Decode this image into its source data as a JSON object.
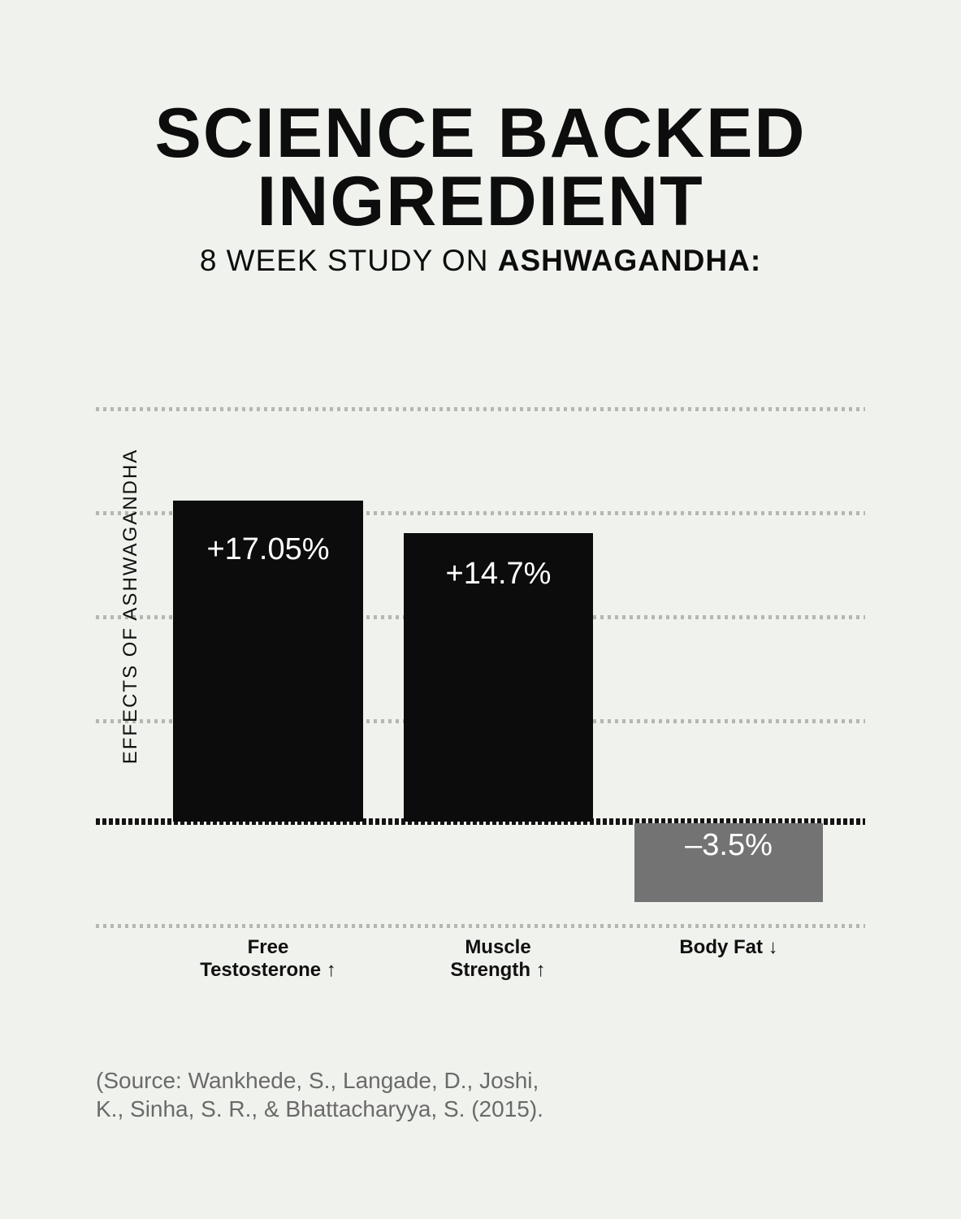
{
  "title": {
    "line1": "SCIENCE BACKED",
    "line2": "INGREDIENT"
  },
  "subtitle": {
    "prefix": "8 WEEK STUDY ON ",
    "emphasis": "ASHWAGANDHA:"
  },
  "chart_data": {
    "type": "bar",
    "title": "8 WEEK STUDY ON ASHWAGANDHA",
    "xlabel": "",
    "ylabel": "EFFECTS OF ASHWAGANDHA",
    "categories": [
      "Free Testosterone ↑",
      "Muscle Strength ↑",
      "Body Fat ↓"
    ],
    "values": [
      17.05,
      14.7,
      -3.5
    ],
    "grid": "horizontal dotted gridlines, no tick labels, bold dotted zero baseline",
    "legend": "none",
    "bars": [
      {
        "category_line1": "Free",
        "category_line2": "Testosterone",
        "arrow": "↑",
        "value": 17.05,
        "value_label": "+17.05%",
        "color": "#0c0c0c"
      },
      {
        "category_line1": "Muscle",
        "category_line2": "Strength",
        "arrow": "↑",
        "value": 14.7,
        "value_label": "+14.7%",
        "color": "#0c0c0c"
      },
      {
        "category_line1": "Body Fat",
        "category_line2": "",
        "arrow": "↓",
        "value": -3.5,
        "value_label": "–3.5%",
        "color": "#737373"
      }
    ]
  },
  "source": {
    "line1": "(Source: Wankhede, S., Langade, D., Joshi,",
    "line2": "K., Sinha, S. R., & Bhattacharyya, S. (2015)."
  },
  "colors": {
    "bg": "#f0f2ed",
    "bar-black": "#0c0c0c",
    "bar-gray": "#737373",
    "grid": "#b6b7b3",
    "baseline": "#141414",
    "text-dark": "#0d0d0d",
    "text-source": "#6a6a6a"
  }
}
